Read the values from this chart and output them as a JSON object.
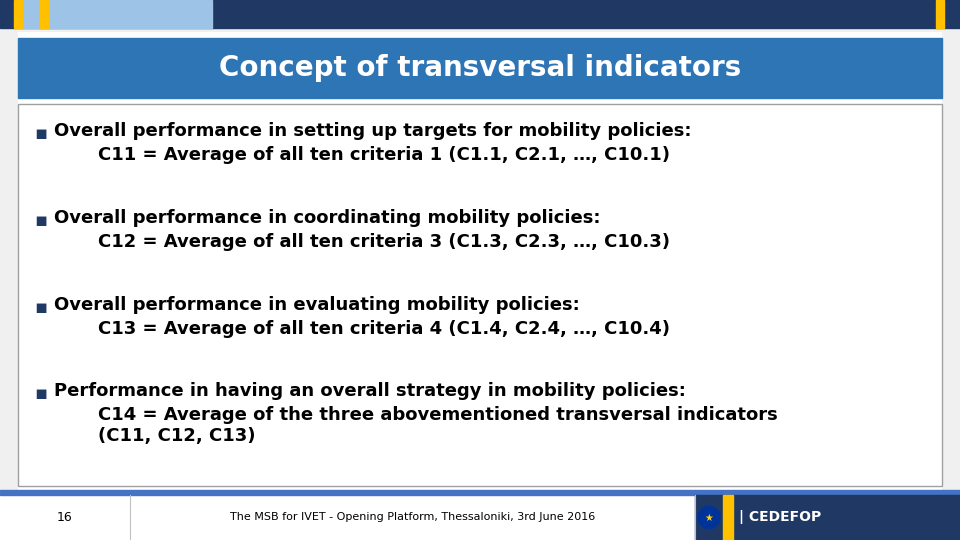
{
  "title": "Concept of transversal indicators",
  "title_bg_color": "#2E75B6",
  "title_text_color": "#FFFFFF",
  "slide_bg_color": "#F0F0F0",
  "main_bg_color": "#FFFFFF",
  "header_bar_color": "#1F3864",
  "header_accent_color": "#FFC000",
  "header_light_color": "#9DC3E6",
  "content_border_color": "#A0A0A0",
  "bullet_color": "#1F3864",
  "footer_text": "The MSB for IVET - Opening Platform, Thessaloniki, 3rd June 2016",
  "page_number": "16",
  "footer_dark_bar": "#1F3864",
  "footer_blue_bar": "#4472C4",
  "bullet_items": [
    {
      "main": "Overall performance in setting up targets for mobility policies:",
      "sub": "C11 = Average of all ten criteria 1 (C1.1, C2.1, …, C10.1)"
    },
    {
      "main": "Overall performance in coordinating mobility policies:",
      "sub": "C12 = Average of all ten criteria 3 (C1.3, C2.3, …, C10.3)"
    },
    {
      "main": "Overall performance in evaluating mobility policies:",
      "sub": "C13 = Average of all ten criteria 4 (C1.4, C2.4, …, C10.4)"
    },
    {
      "main": "Performance in having an overall strategy in mobility policies:",
      "sub": "C14 = Average of the three abovementioned transversal indicators\n(C11, C12, C13)"
    }
  ],
  "font_family": "DejaVu Sans",
  "title_fontsize": 20,
  "body_fontsize": 13,
  "sub_fontsize": 13,
  "footer_fontsize": 8,
  "pagenr_fontsize": 9
}
